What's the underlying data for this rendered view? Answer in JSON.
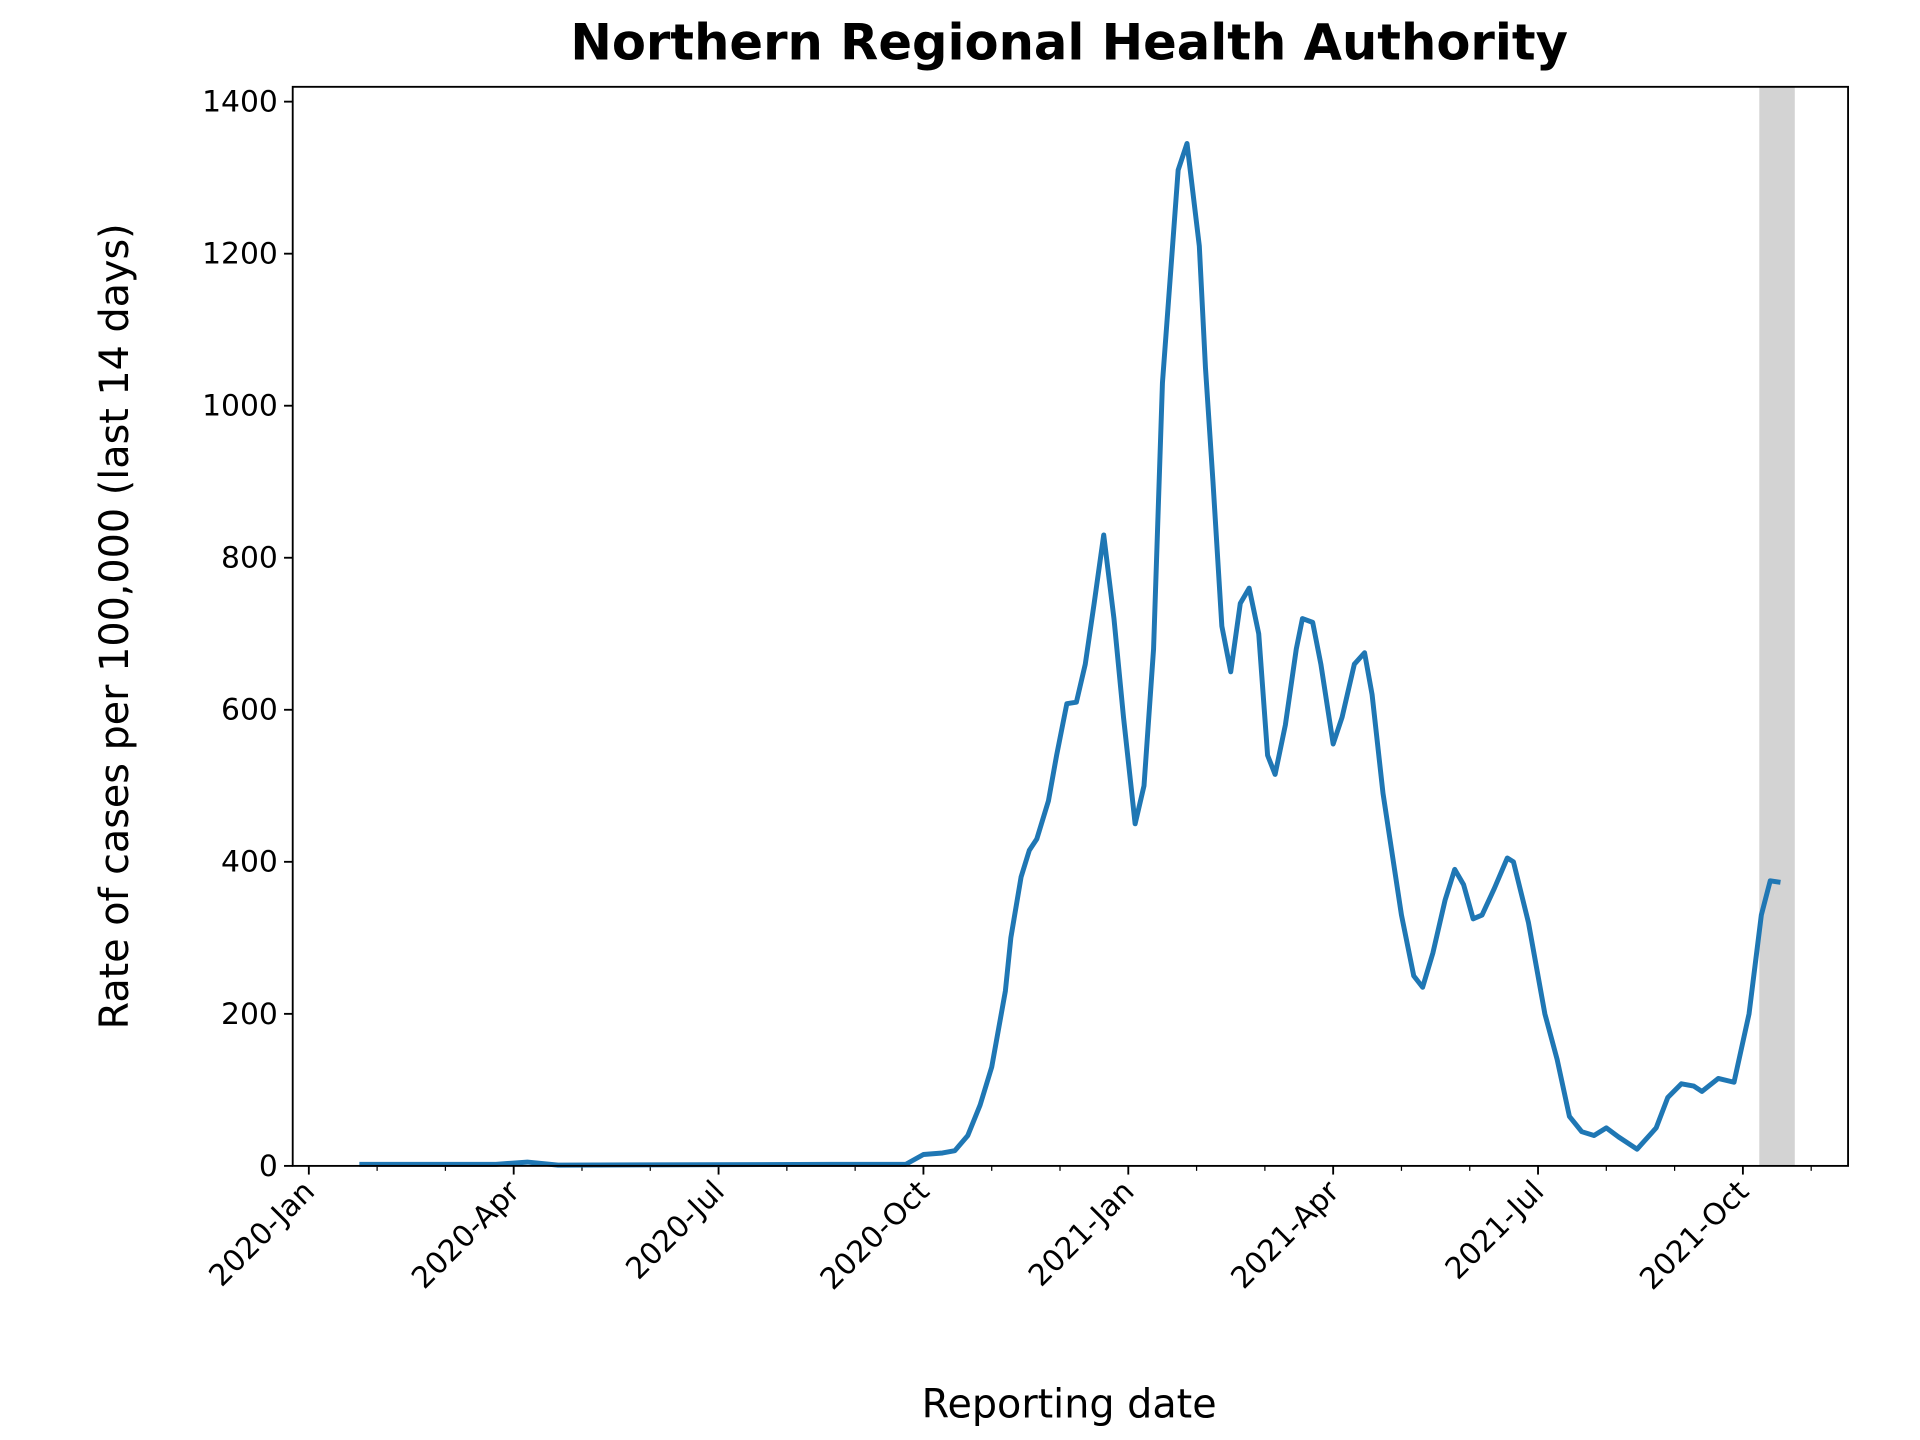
{
  "chart_data": {
    "type": "line",
    "title": "Northern Regional Health Authority",
    "x_label": "Reporting date",
    "y_label": "Rate of cases per 100,000 (last 14 days)",
    "x": [
      0.74,
      2.74,
      3.2,
      3.65,
      7.65,
      8.74,
      9.0,
      9.28,
      9.46,
      9.65,
      9.83,
      10.0,
      10.2,
      10.28,
      10.43,
      10.55,
      10.66,
      10.83,
      10.95,
      11.1,
      11.24,
      11.37,
      11.5,
      11.64,
      11.79,
      11.93,
      12.1,
      12.23,
      12.37,
      12.5,
      12.64,
      12.73,
      12.86,
      13.04,
      13.13,
      13.24,
      13.37,
      13.5,
      13.64,
      13.77,
      13.91,
      14.04,
      14.15,
      14.3,
      14.46,
      14.55,
      14.7,
      14.82,
      15.0,
      15.13,
      15.31,
      15.46,
      15.57,
      15.73,
      16.0,
      16.18,
      16.31,
      16.46,
      16.64,
      16.78,
      16.91,
      17.05,
      17.18,
      17.36,
      17.55,
      17.64,
      17.86,
      18.1,
      18.28,
      18.46,
      18.64,
      18.82,
      19.0,
      19.18,
      19.45,
      19.73,
      19.9,
      20.1,
      20.28,
      20.4,
      20.64,
      20.87,
      21.09,
      21.27,
      21.4,
      21.55
    ],
    "series": [
      {
        "name": "Rate",
        "color": "#1f77b4",
        "values": [
          2,
          2,
          5,
          1,
          2,
          2,
          15,
          17,
          20,
          40,
          80,
          130,
          230,
          300,
          380,
          415,
          430,
          480,
          540,
          608,
          610,
          660,
          740,
          830,
          720,
          590,
          450,
          500,
          680,
          1030,
          1200,
          1310,
          1345,
          1210,
          1050,
          900,
          710,
          650,
          740,
          760,
          700,
          540,
          515,
          580,
          680,
          720,
          715,
          660,
          555,
          590,
          660,
          675,
          620,
          490,
          330,
          250,
          235,
          280,
          350,
          390,
          370,
          325,
          330,
          365,
          405,
          400,
          320,
          200,
          140,
          65,
          45,
          40,
          50,
          38,
          22,
          50,
          90,
          108,
          105,
          98,
          115,
          110,
          200,
          330,
          375,
          373
        ]
      }
    ],
    "xlim": [
      -0.236,
      22.54
    ],
    "ylim": [
      0,
      1419.5
    ],
    "xticks": [
      {
        "value": 0,
        "label": "2020-Jan"
      },
      {
        "value": 3,
        "label": "2020-Apr"
      },
      {
        "value": 6,
        "label": "2020-Jul"
      },
      {
        "value": 9,
        "label": "2020-Oct"
      },
      {
        "value": 12,
        "label": "2021-Jan"
      },
      {
        "value": 15,
        "label": "2021-Apr"
      },
      {
        "value": 18,
        "label": "2021-Jul"
      },
      {
        "value": 21,
        "label": "2021-Oct"
      }
    ],
    "xminorticks": [
      1,
      2,
      4,
      5,
      7,
      8,
      10,
      11,
      13,
      14,
      16,
      17,
      19,
      20,
      22
    ],
    "yticks": [
      0,
      200,
      400,
      600,
      800,
      1000,
      1200,
      1400
    ],
    "highlight": {
      "x": [
        21.24,
        21.76
      ],
      "color": "#d3d3d3"
    }
  }
}
